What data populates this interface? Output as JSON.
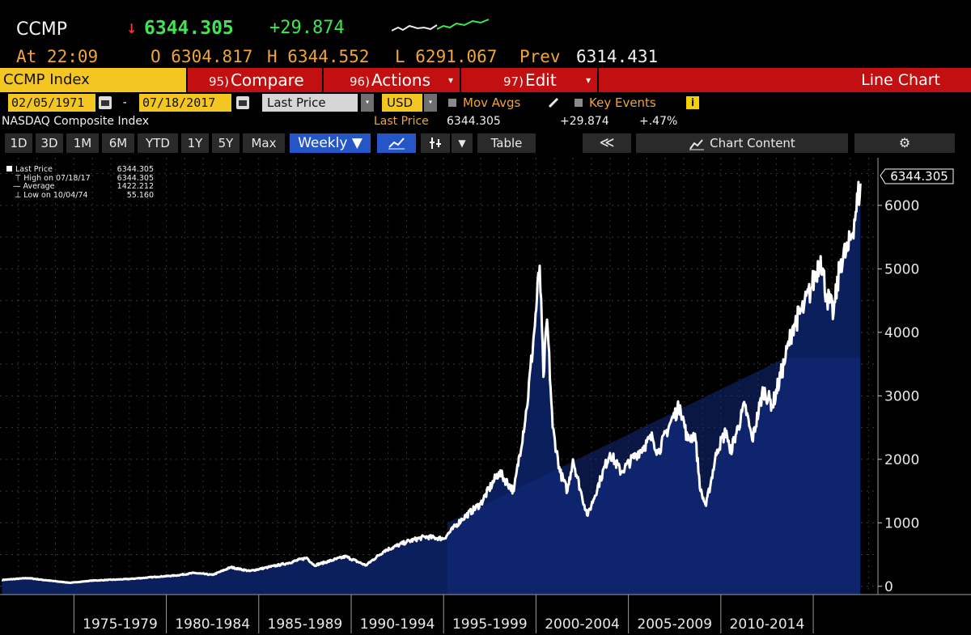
{
  "ticker": {
    "symbol": "CCMP",
    "direction_arrow": "↓",
    "last": "6344.305",
    "change": "+29.874",
    "time_label": "At 22:09",
    "open": "O 6304.817",
    "high": "H 6344.552",
    "low": "L 6291.067",
    "prev_label": "Prev",
    "prev_value": "6314.431"
  },
  "menubar": {
    "index_label": "CCMP Index",
    "compare_num": "95)",
    "compare_label": "Compare",
    "actions_num": "96)",
    "actions_label": "Actions",
    "edit_num": "97)",
    "edit_label": "Edit",
    "chart_type": "Line Chart"
  },
  "controls": {
    "start_date": "02/05/1971",
    "end_date": "07/18/2017",
    "dash": "-",
    "field": "Last Price",
    "currency": "USD",
    "mov_avgs": "Mov Avgs",
    "key_events": "Key Events",
    "info": "i"
  },
  "subtitle": {
    "name": "NASDAQ Composite Index",
    "last_price_label": "Last Price",
    "last_price_value": "6344.305",
    "change": "+29.874",
    "pct_change": "+.47%"
  },
  "toolbar": {
    "ranges": [
      "1D",
      "3D",
      "1M",
      "6M",
      "YTD",
      "1Y",
      "5Y",
      "Max"
    ],
    "frequency": "Weekly ▼",
    "table": "Table",
    "collapse": "≪",
    "chart_content": "Chart Content",
    "settings": "⚙"
  },
  "legend": {
    "items": [
      {
        "label": "Last Price",
        "value": "6344.305"
      },
      {
        "label": "High on 07/18/17",
        "value": "6344.305"
      },
      {
        "label": "Average",
        "value": "1422.212"
      },
      {
        "label": "Low on 10/04/74",
        "value": "55.160"
      }
    ]
  },
  "colors": {
    "line": "#ffffff",
    "area": "#0b1f5c",
    "accent_yellow": "#f4c622",
    "menu_red": "#c21010",
    "up_green": "#3ee64f",
    "down_red": "#ff3b2f"
  },
  "chart_data": {
    "type": "area",
    "series": [
      {
        "name": "Last Price",
        "points": [
          [
            1971.1,
            100
          ],
          [
            1972.5,
            130
          ],
          [
            1973.5,
            95
          ],
          [
            1974.8,
            55
          ],
          [
            1976.0,
            90
          ],
          [
            1978.0,
            115
          ],
          [
            1979.5,
            150
          ],
          [
            1980.5,
            170
          ],
          [
            1981.5,
            210
          ],
          [
            1982.5,
            180
          ],
          [
            1983.5,
            300
          ],
          [
            1984.5,
            240
          ],
          [
            1985.5,
            300
          ],
          [
            1986.5,
            360
          ],
          [
            1987.6,
            450
          ],
          [
            1988.0,
            330
          ],
          [
            1989.7,
            470
          ],
          [
            1990.8,
            330
          ],
          [
            1991.8,
            560
          ],
          [
            1993.0,
            700
          ],
          [
            1994.0,
            780
          ],
          [
            1995.0,
            750
          ],
          [
            1996.0,
            1060
          ],
          [
            1997.0,
            1300
          ],
          [
            1998.0,
            1800
          ],
          [
            1998.8,
            1500
          ],
          [
            1999.5,
            2800
          ],
          [
            1999.9,
            4000
          ],
          [
            2000.2,
            5048
          ],
          [
            2000.4,
            3300
          ],
          [
            2000.6,
            4200
          ],
          [
            2000.9,
            2500
          ],
          [
            2001.3,
            1800
          ],
          [
            2001.7,
            1500
          ],
          [
            2002.0,
            2000
          ],
          [
            2002.5,
            1400
          ],
          [
            2002.8,
            1114
          ],
          [
            2003.5,
            1700
          ],
          [
            2004.0,
            2100
          ],
          [
            2004.6,
            1800
          ],
          [
            2005.5,
            2100
          ],
          [
            2006.3,
            2350
          ],
          [
            2006.6,
            2100
          ],
          [
            2007.3,
            2600
          ],
          [
            2007.8,
            2850
          ],
          [
            2008.2,
            2300
          ],
          [
            2008.6,
            2400
          ],
          [
            2008.9,
            1500
          ],
          [
            2009.2,
            1268
          ],
          [
            2009.8,
            2150
          ],
          [
            2010.3,
            2450
          ],
          [
            2010.5,
            2100
          ],
          [
            2011.3,
            2850
          ],
          [
            2011.7,
            2300
          ],
          [
            2012.3,
            3100
          ],
          [
            2012.8,
            2850
          ],
          [
            2013.5,
            3600
          ],
          [
            2013.9,
            4100
          ],
          [
            2014.5,
            4400
          ],
          [
            2014.9,
            4700
          ],
          [
            2015.4,
            5200
          ],
          [
            2015.7,
            4600
          ],
          [
            2016.1,
            4300
          ],
          [
            2016.5,
            5150
          ],
          [
            2016.9,
            5300
          ],
          [
            2017.3,
            5900
          ],
          [
            2017.55,
            6344.305
          ]
        ]
      }
    ],
    "xlim": [
      1971.0,
      2018.5
    ],
    "ylim": [
      -130,
      6750
    ],
    "y_ticks": [
      0,
      1000,
      2000,
      3000,
      4000,
      5000,
      6000
    ],
    "x_tick_labels": [
      "1975-1979",
      "1980-1984",
      "1985-1989",
      "1990-1994",
      "1995-1999",
      "2000-2004",
      "2005-2009",
      "2010-2014"
    ],
    "x_tick_starts": [
      1975,
      1980,
      1985,
      1990,
      1995,
      2000,
      2005,
      2010
    ],
    "last_value_label": "6344.305",
    "grid": true,
    "legend_placement": "top-left"
  }
}
